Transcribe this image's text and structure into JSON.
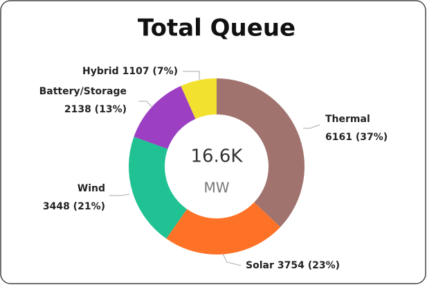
{
  "chart_data": {
    "type": "donut",
    "title": "Total Queue",
    "center_label": "16.6K",
    "center_unit": "MW",
    "categories": [
      "Thermal",
      "Solar",
      "Wind",
      "Battery/Storage",
      "Hybrid"
    ],
    "values": [
      6161,
      3754,
      3448,
      2138,
      1107
    ],
    "value_labels": [
      "6161 (37%)",
      "3754 (23%)",
      "3448 (21%)",
      "2138 (13%)",
      "1107 (7%)"
    ],
    "colors": [
      "#a0736e",
      "#fd7226",
      "#20c193",
      "#9c3fc3",
      "#f2e12e"
    ]
  }
}
